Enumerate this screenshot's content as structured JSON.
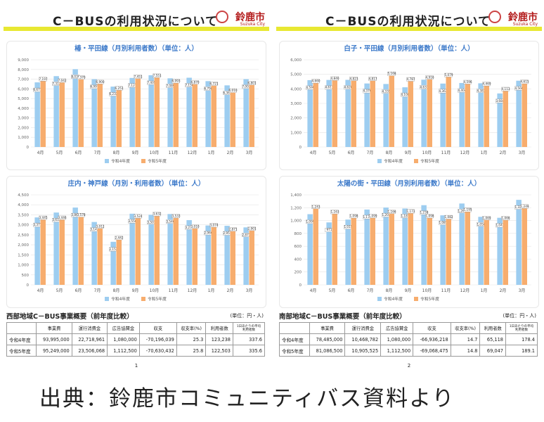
{
  "source_caption": "出典：鈴鹿市コミュニティバス資料より",
  "colors": {
    "r4": "#9dcdf0",
    "r5": "#f7ad6e",
    "header_bar": "#e8e832",
    "title": "#3a78c9",
    "brand": "#b31b1b"
  },
  "pages": [
    {
      "header_title": "C－BUSの利用状況について",
      "city_name": "鈴鹿市",
      "city_sub": "Suzuka City",
      "page_number": "1",
      "summary": {
        "title": "西部地域C－BUS事業概要（前年度比較）",
        "unit": "(単位：円・人)",
        "columns": [
          "",
          "事業費",
          "運行消費金",
          "広告協賛金",
          "収支",
          "収支率(%)",
          "利用者数",
          "1日あたりの平均利用者数"
        ],
        "rows": [
          [
            "令和4年度",
            "93,995,000",
            "22,718,961",
            "1,080,000",
            "-70,196,039",
            "25.3",
            "123,238",
            "337.6"
          ],
          [
            "令和5年度",
            "95,249,000",
            "23,506,068",
            "1,112,500",
            "-70,630,432",
            "25.8",
            "122,503",
            "335.6"
          ]
        ]
      }
    },
    {
      "header_title": "C－BUSの利用状況について",
      "city_name": "鈴鹿市",
      "city_sub": "Suzuka City",
      "page_number": "2",
      "summary": {
        "title": "南部地域C－BUS事業概要（前年度比較）",
        "unit": "(単位：円・人)",
        "columns": [
          "",
          "事業費",
          "運行消費金",
          "広告協賛金",
          "収支",
          "収支率(%)",
          "利用者数",
          "1日あたりの平均利用者数"
        ],
        "rows": [
          [
            "令和4年度",
            "78,485,000",
            "10,468,782",
            "1,080,000",
            "-66,936,218",
            "14.7",
            "65,118",
            "178.4"
          ],
          [
            "令和5年度",
            "81,086,500",
            "10,905,525",
            "1,112,500",
            "-69,068,475",
            "14.8",
            "69,047",
            "189.1"
          ]
        ]
      }
    }
  ],
  "chart_data": [
    {
      "type": "bar",
      "title": "椿・平田線（月別利用者数）（単位：人）",
      "categories": [
        "4月",
        "5月",
        "6月",
        "7月",
        "8月",
        "9月",
        "10月",
        "11月",
        "12月",
        "1月",
        "2月",
        "3月"
      ],
      "ylim": [
        0,
        9000
      ],
      "yticks": [
        0,
        1000,
        2000,
        3000,
        4000,
        5000,
        6000,
        7000,
        8000,
        9000
      ],
      "series": [
        {
          "name": "令和4年度",
          "values": [
            6671,
            7312,
            8033,
            6997,
            6232,
            7127,
            7405,
            7089,
            7150,
            6798,
            6361,
            7003
          ]
        },
        {
          "name": "令和5年度",
          "values": [
            7197,
            7042,
            7370,
            6900,
            6251,
            7451,
            7551,
            6993,
            6870,
            6721,
            6010,
            6801
          ]
        }
      ]
    },
    {
      "type": "bar",
      "title": "庄内・神戸線（月別・利用者数）（単位：人）",
      "categories": [
        "4月",
        "5月",
        "6月",
        "7月",
        "8月",
        "9月",
        "10月",
        "11月",
        "12月",
        "1月",
        "2月",
        "3月"
      ],
      "ylim": [
        0,
        4500
      ],
      "yticks": [
        0,
        500,
        1000,
        1500,
        2000,
        2500,
        3000,
        3500,
        4000,
        4500
      ],
      "series": [
        {
          "name": "令和4年度",
          "values": [
            3371,
            3615,
            3863,
            3142,
            2152,
            3556,
            3501,
            3540,
            3235,
            2966,
            2951,
            2873
          ]
        },
        {
          "name": "令和5年度",
          "values": [
            3445,
            3446,
            3578,
            3012,
            2442,
            3524,
            3632,
            3533,
            3010,
            3074,
            2871,
            2901
          ]
        }
      ]
    },
    {
      "type": "bar",
      "title": "白子・平田線（月別利用者数）（単位：人）",
      "categories": [
        "4月",
        "5月",
        "6月",
        "7月",
        "8月",
        "9月",
        "10月",
        "11月",
        "12月",
        "1月",
        "2月",
        "3月"
      ],
      "ylim": [
        0,
        6000
      ],
      "yticks": [
        0,
        1000,
        2000,
        3000,
        4000,
        5000,
        6000
      ],
      "series": [
        {
          "name": "令和4年度",
          "values": [
            4599,
            4613,
            4620,
            4370,
            4335,
            4108,
            4631,
            4363,
            4404,
            4383,
            3684,
            4560
          ]
        },
        {
          "name": "令和5年度",
          "values": [
            4660,
            4840,
            4823,
            4817,
            5168,
            4787,
            4916,
            5079,
            4596,
            4469,
            4113,
            4615
          ]
        }
      ]
    },
    {
      "type": "bar",
      "title": "太陽の街・平田線（月別利用者数）（単位：人）",
      "categories": [
        "4月",
        "5月",
        "6月",
        "7月",
        "8月",
        "9月",
        "10月",
        "11月",
        "12月",
        "1月",
        "2月",
        "3月"
      ],
      "ylim": [
        0,
        1400
      ],
      "yticks": [
        0,
        200,
        400,
        600,
        800,
        1000,
        1200,
        1400
      ],
      "series": [
        {
          "name": "令和4年度",
          "values": [
            1099,
            971,
            1015,
            1171,
            1202,
            1187,
            1239,
            1081,
            1265,
            1058,
            1043,
            1322
          ]
        },
        {
          "name": "令和5年度",
          "values": [
            1243,
            1163,
            1098,
            1099,
            1166,
            1172,
            1098,
            1082,
            1195,
            1069,
            1066,
            1249
          ]
        }
      ]
    }
  ]
}
